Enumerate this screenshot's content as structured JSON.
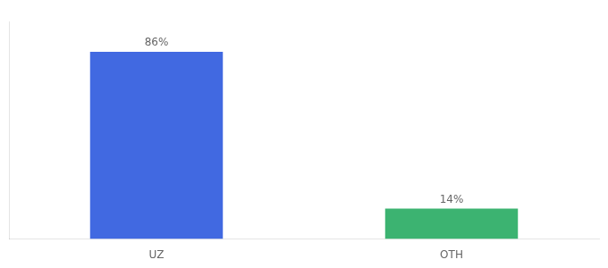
{
  "chart_data": {
    "type": "bar",
    "categories": [
      "UZ",
      "OTH"
    ],
    "values": [
      86,
      14
    ],
    "value_labels": [
      "86%",
      "14%"
    ],
    "data_labels": true,
    "colors": [
      "#4169E1",
      "#3CB371"
    ],
    "ylim": [
      0,
      100
    ],
    "grid": false,
    "tick_labels": "x"
  }
}
